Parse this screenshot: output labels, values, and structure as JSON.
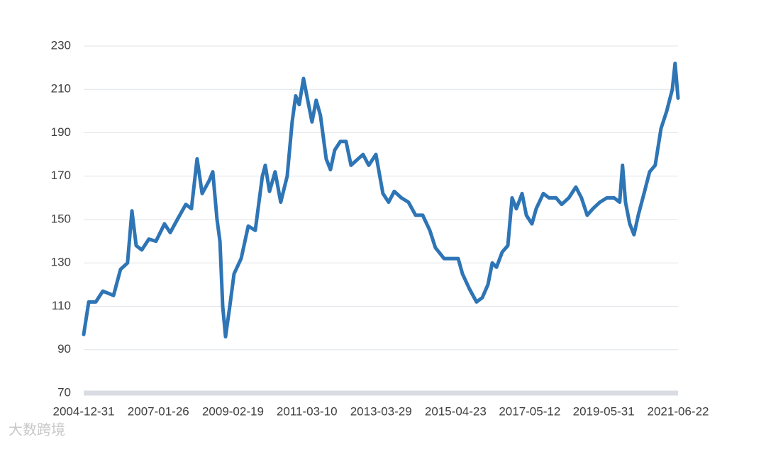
{
  "chart_data": {
    "type": "line",
    "x": [
      "2004-12-31",
      "2005-02-20",
      "2005-05-02",
      "2005-07-13",
      "2005-10-29",
      "2006-01-08",
      "2006-03-20",
      "2006-05-03",
      "2006-06-15",
      "2006-08-11",
      "2006-10-22",
      "2007-01-02",
      "2007-03-29",
      "2007-05-26",
      "2007-08-06",
      "2007-10-31",
      "2007-12-27",
      "2008-02-22",
      "2008-04-13",
      "2008-06-24",
      "2008-07-30",
      "2008-09-11",
      "2008-10-10",
      "2008-11-07",
      "2008-12-06",
      "2009-01-18",
      "2009-03-02",
      "2009-05-13",
      "2009-07-24",
      "2009-10-03",
      "2009-12-14",
      "2010-01-12",
      "2010-02-24",
      "2010-04-22",
      "2010-06-18",
      "2010-08-22",
      "2010-10-11",
      "2010-11-16",
      "2010-12-22",
      "2011-02-03",
      "2011-03-18",
      "2011-04-30",
      "2011-06-12",
      "2011-07-25",
      "2011-09-21",
      "2011-11-03",
      "2011-12-16",
      "2012-02-11",
      "2012-04-09",
      "2012-05-29",
      "2012-08-09",
      "2012-09-28",
      "2012-11-25",
      "2013-02-05",
      "2013-04-17",
      "2013-06-14",
      "2013-08-10",
      "2013-10-21",
      "2014-01-01",
      "2014-03-14",
      "2014-05-25",
      "2014-08-05",
      "2014-10-01",
      "2014-12-27",
      "2015-03-08",
      "2015-05-19",
      "2015-07-01",
      "2015-09-10",
      "2015-11-21",
      "2016-01-18",
      "2016-03-16",
      "2016-04-28",
      "2016-06-10",
      "2016-08-07",
      "2016-10-03",
      "2016-11-15",
      "2016-12-28",
      "2017-02-24",
      "2017-04-08",
      "2017-06-04",
      "2017-07-17",
      "2017-09-27",
      "2017-11-23",
      "2018-02-03",
      "2018-04-01",
      "2018-06-12",
      "2018-08-22",
      "2018-10-18",
      "2018-12-15",
      "2019-02-11",
      "2019-04-23",
      "2019-07-03",
      "2019-09-13",
      "2019-11-09",
      "2019-12-08",
      "2020-01-07",
      "2020-02-19",
      "2020-04-02",
      "2020-05-15",
      "2020-07-12",
      "2020-09-07",
      "2020-11-03",
      "2021-01-01",
      "2021-02-27",
      "2021-04-25",
      "2021-05-23",
      "2021-06-22"
    ],
    "series": [
      {
        "color": "#2e75b6",
        "values": [
          97,
          112,
          112,
          117,
          115,
          127,
          130,
          154,
          138,
          136,
          141,
          140,
          148,
          144,
          150,
          157,
          155,
          178,
          162,
          168,
          172,
          150,
          140,
          110,
          96,
          110,
          125,
          132,
          147,
          145,
          170,
          175,
          163,
          172,
          158,
          170,
          195,
          207,
          203,
          215,
          205,
          195,
          205,
          198,
          178,
          173,
          182,
          186,
          186,
          175,
          178,
          180,
          175,
          180,
          162,
          158,
          163,
          160,
          158,
          152,
          152,
          145,
          137,
          132,
          132,
          132,
          125,
          118,
          112,
          114,
          120,
          130,
          128,
          135,
          138,
          160,
          155,
          162,
          152,
          148,
          155,
          162,
          160,
          160,
          157,
          160,
          165,
          160,
          152,
          155,
          158,
          160,
          160,
          158,
          175,
          158,
          148,
          143,
          152,
          162,
          172,
          175,
          192,
          200,
          210,
          222,
          206
        ]
      }
    ],
    "xlim": [
      "2004-12-31",
      "2021-06-22"
    ],
    "xticks": [
      "2004-12-31",
      "2007-01-26",
      "2009-02-19",
      "2011-03-10",
      "2013-03-29",
      "2015-04-23",
      "2017-05-12",
      "2019-05-31",
      "2021-06-22"
    ],
    "ylim": [
      70,
      230
    ],
    "yticks": [
      70,
      90,
      110,
      130,
      150,
      170,
      190,
      210,
      230
    ],
    "grid": true
  },
  "watermark": "大数跨境"
}
